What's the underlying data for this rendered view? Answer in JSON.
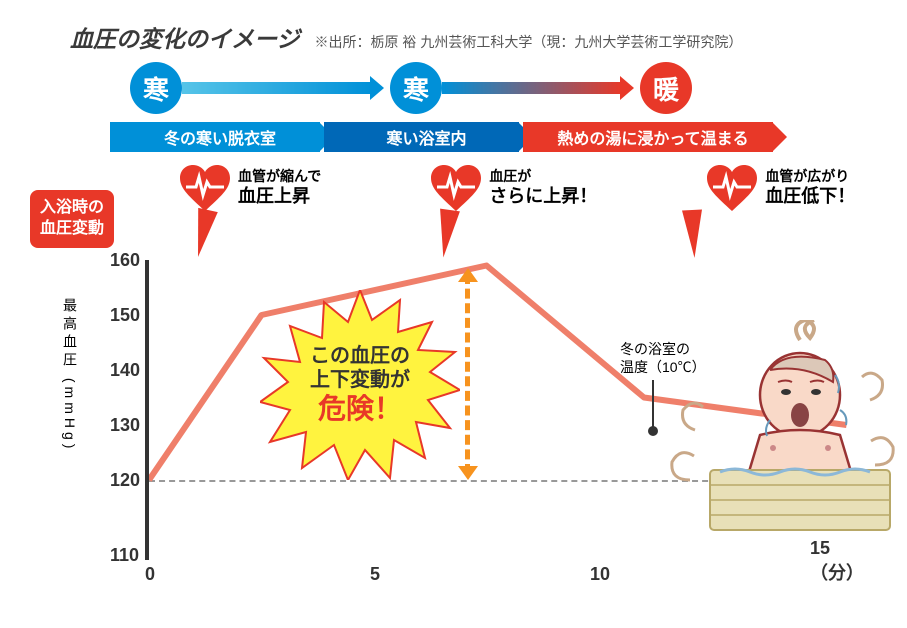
{
  "title": "血圧の変化のイメージ",
  "source": "※出所：栃原 裕 九州芸術工科大学（現：九州大学芸術工学研究院）",
  "flow": {
    "circles": [
      "寒",
      "寒",
      "暖"
    ]
  },
  "stages": [
    "冬の寒い脱衣室",
    "寒い浴室内",
    "熱めの湯に浸かって温まる"
  ],
  "hearts": [
    {
      "line1": "血管が縮んで",
      "line2": "血圧上昇"
    },
    {
      "line1": "血圧が",
      "line2": "さらに上昇！"
    },
    {
      "line1": "血管が広がり",
      "line2": "血圧低下！"
    }
  ],
  "side_badge": {
    "line1": "入浴時の",
    "line2": "血圧変動"
  },
  "chart": {
    "type": "line",
    "y_label": "最高血圧",
    "y_unit": "(mmHg)",
    "y_ticks": [
      160,
      150,
      140,
      130,
      120,
      110
    ],
    "x_ticks": [
      0,
      5,
      10,
      15
    ],
    "x_unit": "（分）",
    "ylim": [
      110,
      160
    ],
    "xlim": [
      0,
      16
    ],
    "points": [
      {
        "x": 0,
        "y": 120
      },
      {
        "x": 2.5,
        "y": 150
      },
      {
        "x": 7.5,
        "y": 159
      },
      {
        "x": 11,
        "y": 135
      },
      {
        "x": 15.5,
        "y": 130
      }
    ],
    "line_color": "#ef7f6a",
    "line_width": 5,
    "baseline_y": 120,
    "baseline_color": "#999999"
  },
  "starburst": {
    "line1": "この血圧の",
    "line2": "上下変動が",
    "line3": "危険！",
    "fill": "#fff33f",
    "stroke": "#e83828"
  },
  "temp_note": {
    "line1": "冬の浴室の",
    "line2": "温度（10℃）"
  },
  "colors": {
    "blue": "#0090d8",
    "darkblue": "#0068b7",
    "red": "#e83828",
    "orange": "#f7931e",
    "heart": "#e83828"
  }
}
